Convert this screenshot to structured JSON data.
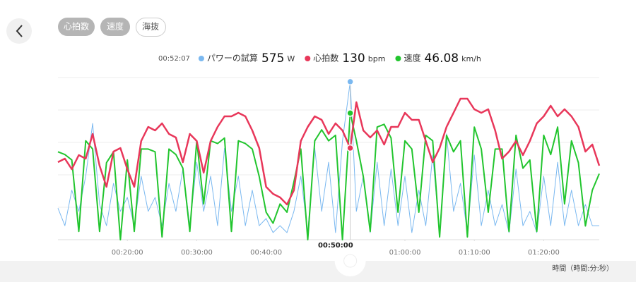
{
  "tabs": [
    "心拍数",
    "速度",
    "海抜"
  ],
  "axis_caption": "時間（時間:分:秒）",
  "chart_data": {
    "type": "line",
    "cursor": {
      "value": 3127,
      "label": "00:52:07"
    },
    "x": [
      600,
      660,
      720,
      780,
      840,
      900,
      960,
      1020,
      1080,
      1140,
      1200,
      1260,
      1320,
      1380,
      1440,
      1500,
      1560,
      1620,
      1680,
      1740,
      1800,
      1860,
      1920,
      1980,
      2040,
      2100,
      2160,
      2220,
      2280,
      2340,
      2400,
      2460,
      2520,
      2580,
      2640,
      2700,
      2760,
      2820,
      2880,
      2940,
      3000,
      3060,
      3127,
      3180,
      3240,
      3300,
      3360,
      3420,
      3480,
      3540,
      3600,
      3660,
      3720,
      3780,
      3840,
      3900,
      3960,
      4020,
      4080,
      4140,
      4200,
      4260,
      4320,
      4380,
      4440,
      4500,
      4560,
      4620,
      4680,
      4740,
      4800,
      4860,
      4920,
      4980,
      5040,
      5100,
      5160,
      5220,
      5280
    ],
    "xlim": [
      600,
      5280
    ],
    "xticks": [
      {
        "value": 1200,
        "label": "00:20:00"
      },
      {
        "value": 1800,
        "label": "00:30:00"
      },
      {
        "value": 2400,
        "label": "00:40:00"
      },
      {
        "value": 3000,
        "label": "00:50:00"
      },
      {
        "value": 3600,
        "label": "01:00:00"
      },
      {
        "value": 4200,
        "label": "01:10:00"
      },
      {
        "value": 4800,
        "label": "01:20:00"
      }
    ],
    "grid": true,
    "series": [
      {
        "name": "パワーの試算",
        "unit": "W",
        "color": "#7ab8f0",
        "ylim": [
          0,
          590
        ],
        "values": [
          115,
          51,
          180,
          103,
          231,
          423,
          128,
          51,
          205,
          103,
          154,
          51,
          231,
          103,
          154,
          51,
          205,
          103,
          257,
          51,
          282,
          103,
          231,
          51,
          333,
          103,
          231,
          51,
          180,
          51,
          77,
          26,
          51,
          26,
          103,
          231,
          26,
          333,
          103,
          282,
          26,
          359,
          575,
          103,
          231,
          26,
          282,
          51,
          257,
          51,
          231,
          26,
          180,
          51,
          308,
          26,
          385,
          103,
          205,
          26,
          308,
          51,
          180,
          51,
          128,
          26,
          257,
          51,
          103,
          26,
          231,
          51,
          282,
          51,
          180,
          51,
          128,
          51,
          51
        ]
      },
      {
        "name": "心拍数",
        "unit": "bpm",
        "color": "#e8375a",
        "ylim": [
          0,
          230
        ],
        "values": [
          110,
          115,
          100,
          120,
          115,
          150,
          105,
          75,
          125,
          130,
          100,
          75,
          140,
          160,
          155,
          165,
          150,
          145,
          110,
          150,
          140,
          95,
          140,
          160,
          175,
          175,
          180,
          175,
          155,
          130,
          75,
          65,
          60,
          50,
          70,
          140,
          160,
          175,
          170,
          150,
          165,
          155,
          130,
          195,
          155,
          145,
          155,
          135,
          160,
          160,
          180,
          170,
          170,
          140,
          110,
          130,
          160,
          180,
          200,
          200,
          185,
          180,
          185,
          155,
          115,
          125,
          140,
          120,
          140,
          165,
          175,
          190,
          175,
          185,
          175,
          160,
          125,
          135,
          105
        ]
      },
      {
        "name": "速度",
        "unit": "km/h",
        "color": "#22c52e",
        "ylim": [
          0,
          59
        ],
        "values": [
          32,
          31,
          29,
          3,
          36,
          33,
          3,
          28,
          32,
          0,
          29,
          3,
          33,
          33,
          32,
          1,
          33,
          31,
          26,
          3,
          36,
          13,
          36,
          35,
          37,
          3,
          36,
          35,
          33,
          23,
          10,
          6,
          13,
          10,
          21,
          33,
          0,
          36,
          40,
          36,
          38,
          0,
          46.08,
          36,
          23,
          3,
          41,
          42,
          37,
          10,
          36,
          33,
          10,
          38,
          36,
          1,
          38,
          32,
          36,
          1,
          41,
          33,
          10,
          33,
          33,
          3,
          38,
          26,
          29,
          3,
          38,
          31,
          41,
          13,
          36,
          28,
          5,
          18,
          24
        ]
      }
    ]
  }
}
